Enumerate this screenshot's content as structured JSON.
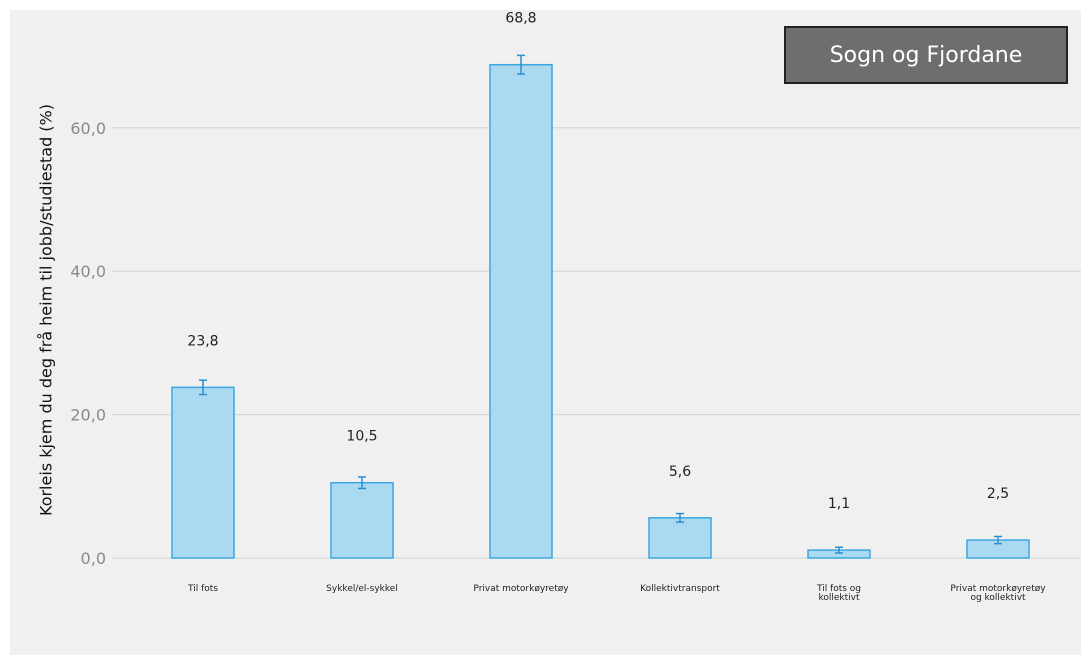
{
  "chart_data": {
    "type": "bar",
    "title": "",
    "xlabel": "",
    "ylabel": "Korleis kjem du deg frå heim til jobb/studiestad (%)",
    "legend": "Sogn og Fjordane",
    "legend_position": "top-right",
    "ylim": [
      0,
      70
    ],
    "yticks": [
      0,
      20,
      40,
      60
    ],
    "ytick_labels": [
      "0,0",
      "20,0",
      "40,0",
      "60,0"
    ],
    "grid": true,
    "categories": [
      [
        "Til fots"
      ],
      [
        "Sykkel/el-sykkel"
      ],
      [
        "Privat motorkøyretøy"
      ],
      [
        "Kollektivtransport"
      ],
      [
        "Til fots og",
        "kollektivt"
      ],
      [
        "Privat motorkøyretøy",
        "og kollektivt"
      ]
    ],
    "values": [
      23.8,
      10.5,
      68.8,
      5.6,
      1.1,
      2.5
    ],
    "value_labels": [
      "23,8",
      "10,5",
      "68,8",
      "5,6",
      "1,1",
      "2,5"
    ],
    "error_low": [
      22.8,
      9.7,
      67.5,
      5.0,
      0.7,
      2.0
    ],
    "error_high": [
      24.8,
      11.3,
      70.1,
      6.2,
      1.5,
      3.0
    ],
    "colors": {
      "bar_fill": "#acd9f2",
      "bar_stroke": "#3aa7e1",
      "error": "#2a8fd0",
      "grid": "#d4d4d4"
    }
  }
}
